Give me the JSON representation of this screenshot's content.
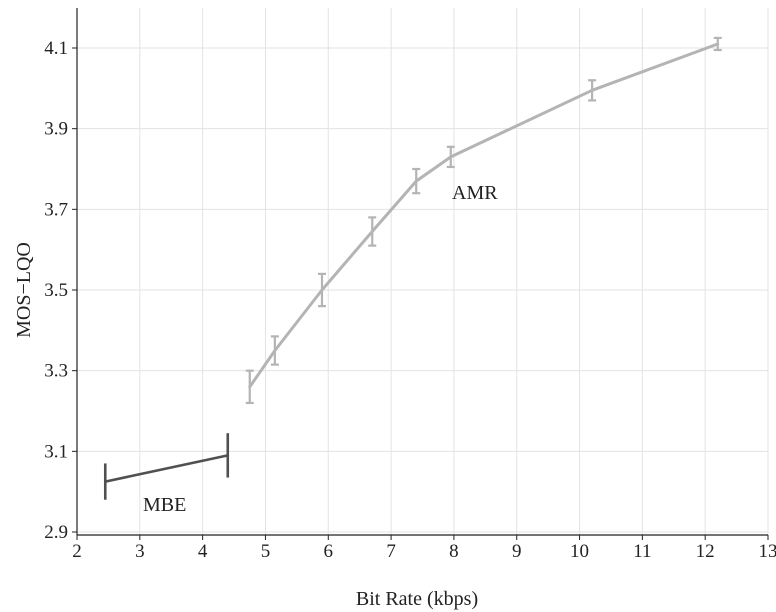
{
  "chart_data": {
    "type": "line",
    "title": "",
    "xlabel": "Bit Rate (kbps)",
    "ylabel": "MOS−LQO",
    "xlim": [
      2,
      13
    ],
    "ylim": [
      2.9,
      4.2
    ],
    "x_ticks": [
      "2",
      "3",
      "4",
      "5",
      "6",
      "7",
      "8",
      "9",
      "10",
      "11",
      "12",
      "13"
    ],
    "y_ticks": [
      "2.9",
      "3.1",
      "3.3",
      "3.5",
      "3.7",
      "3.9",
      "4.1"
    ],
    "grid": true,
    "colors": {
      "AMR": "#b4b4b4",
      "MBE": "#505050"
    },
    "series": [
      {
        "name": "AMR",
        "points": [
          {
            "x": 4.75,
            "y": 3.26,
            "err": 0.04
          },
          {
            "x": 5.15,
            "y": 3.35,
            "err": 0.035
          },
          {
            "x": 5.9,
            "y": 3.5,
            "err": 0.04
          },
          {
            "x": 6.7,
            "y": 3.645,
            "err": 0.035
          },
          {
            "x": 7.4,
            "y": 3.77,
            "err": 0.03
          },
          {
            "x": 7.95,
            "y": 3.83,
            "err": 0.025
          },
          {
            "x": 10.2,
            "y": 3.995,
            "err": 0.025
          },
          {
            "x": 12.2,
            "y": 4.11,
            "err": 0.015
          }
        ]
      },
      {
        "name": "MBE",
        "points": [
          {
            "x": 2.45,
            "y": 3.025,
            "err": 0.045
          },
          {
            "x": 4.4,
            "y": 3.09,
            "err": 0.055
          }
        ]
      }
    ]
  }
}
